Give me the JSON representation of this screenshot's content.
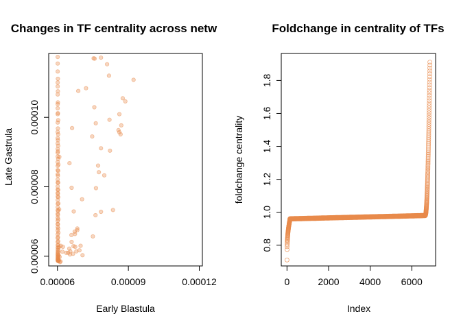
{
  "chart_data": [
    {
      "type": "scatter",
      "title": "Changes in TF centrality across netw",
      "xlabel": "Early Blastula",
      "ylabel": "Late Gastrula",
      "xlim": [
        5.63e-05,
        0.0001213
      ],
      "ylim": [
        5.72e-05,
        0.0001184
      ],
      "x_ticks": [
        6e-05,
        9e-05,
        0.00012
      ],
      "x_tick_labels": [
        "0.00006",
        "0.00009",
        "0.00012"
      ],
      "y_ticks": [
        6e-05,
        8e-05,
        0.0001
      ],
      "y_tick_labels": [
        "0.00006",
        "0.00008",
        "0.00010"
      ],
      "marker": "filled circle, semi-transparent",
      "color": "#E8894A",
      "points": [
        [
          6.01e-05,
          0.0001174
        ],
        [
          6.01e-05,
          0.0001155
        ],
        [
          6.01e-05,
          0.0001132
        ],
        [
          6.02e-05,
          0.0001111
        ],
        [
          6.01e-05,
          0.0001089
        ],
        [
          6.01e-05,
          0.0001066
        ],
        [
          6.02e-05,
          0.0001043
        ],
        [
          6.01e-05,
          0.0001026
        ],
        [
          6.01e-05,
          0.0001009
        ],
        [
          6.01e-05,
          9.85e-05
        ],
        [
          6.01e-05,
          9.58e-05
        ],
        [
          6.01e-05,
          9.4e-05
        ],
        [
          6.01e-05,
          9.25e-05
        ],
        [
          6.01e-05,
          9.09e-05
        ],
        [
          6.01e-05,
          8.98e-05
        ],
        [
          6.01e-05,
          8.87e-05
        ],
        [
          6.01e-05,
          8.71e-05
        ],
        [
          6.01e-05,
          8.6e-05
        ],
        [
          6.01e-05,
          8.48e-05
        ],
        [
          6.01e-05,
          8.36e-05
        ],
        [
          6.01e-05,
          8.21e-05
        ],
        [
          6.01e-05,
          8.12e-05
        ],
        [
          6.01e-05,
          8.01e-05
        ],
        [
          6.01e-05,
          7.92e-05
        ],
        [
          6.01e-05,
          7.82e-05
        ],
        [
          6.01e-05,
          7.72e-05
        ],
        [
          6.01e-05,
          7.62e-05
        ],
        [
          6.01e-05,
          7.51e-05
        ],
        [
          6.01e-05,
          7.41e-05
        ],
        [
          6.01e-05,
          7.32e-05
        ],
        [
          6.01e-05,
          7.22e-05
        ],
        [
          6.01e-05,
          7.11e-05
        ],
        [
          6.01e-05,
          7.02e-05
        ],
        [
          6.01e-05,
          6.93e-05
        ],
        [
          6.01e-05,
          6.84e-05
        ],
        [
          6.01e-05,
          6.74e-05
        ],
        [
          6.01e-05,
          6.63e-05
        ],
        [
          6.01e-05,
          6.52e-05
        ],
        [
          6.01e-05,
          6.41e-05
        ],
        [
          6.01e-05,
          6.32e-05
        ],
        [
          6.01e-05,
          6.25e-05
        ],
        [
          6.01e-05,
          6.18e-05
        ],
        [
          6.01e-05,
          6.12e-05
        ],
        [
          6.01e-05,
          6.07e-05
        ],
        [
          6.01e-05,
          6.03e-05
        ],
        [
          6.01e-05,
          5.99e-05
        ],
        [
          6.01e-05,
          5.96e-05
        ],
        [
          6.01e-05,
          5.93e-05
        ],
        [
          6.01e-05,
          5.9e-05
        ],
        [
          6.01e-05,
          5.88e-05
        ],
        [
          6.02e-05,
          5.87e-05
        ],
        [
          6.03e-05,
          5.86e-05
        ],
        [
          6.04e-05,
          5.86e-05
        ],
        [
          6.05e-05,
          5.87e-05
        ],
        [
          6.06e-05,
          5.88e-05
        ],
        [
          6.03e-05,
          5.92e-05
        ],
        [
          6.04e-05,
          5.96e-05
        ],
        [
          6.03e-05,
          6.01e-05
        ],
        [
          6.02e-05,
          6.06e-05
        ],
        [
          6.03e-05,
          6.11e-05
        ],
        [
          6.04e-05,
          6.17e-05
        ],
        [
          6.03e-05,
          6.24e-05
        ],
        [
          6.04e-05,
          6.32e-05
        ],
        [
          6.03e-05,
          6.43e-05
        ],
        [
          6.02e-05,
          6.55e-05
        ],
        [
          6.04e-05,
          6.68e-05
        ],
        [
          6.03e-05,
          6.8e-05
        ],
        [
          6.02e-05,
          6.92e-05
        ],
        [
          6.03e-05,
          7.06e-05
        ],
        [
          6.02e-05,
          7.19e-05
        ],
        [
          6.03e-05,
          7.31e-05
        ],
        [
          6.04e-05,
          7.52e-05
        ],
        [
          6.03e-05,
          7.7e-05
        ],
        [
          6.02e-05,
          7.8e-05
        ],
        [
          6.03e-05,
          7.91e-05
        ],
        [
          6.03e-05,
          8.12e-05
        ],
        [
          6.02e-05,
          8.32e-05
        ],
        [
          6.03e-05,
          8.46e-05
        ],
        [
          6.04e-05,
          8.64e-05
        ],
        [
          6.03e-05,
          8.8e-05
        ],
        [
          6.02e-05,
          9.02e-05
        ],
        [
          6.03e-05,
          9.18e-05
        ],
        [
          6.02e-05,
          9.34e-05
        ],
        [
          6.03e-05,
          9.51e-05
        ],
        [
          6.02e-05,
          9.68e-05
        ],
        [
          6.03e-05,
          9.92e-05
        ],
        [
          6.02e-05,
          0.0001012
        ],
        [
          6.01e-05,
          0.0001038
        ],
        [
          6.02e-05,
          0.0001075
        ],
        [
          6.01e-05,
          0.00011
        ],
        [
          6.05e-05,
          6.03e-05
        ],
        [
          6.06e-05,
          6.26e-05
        ],
        [
          6.07e-05,
          7.35e-05
        ],
        [
          6.08e-05,
          8.86e-05
        ],
        [
          6.09e-05,
          5.98e-05
        ],
        [
          6.11e-05,
          5.83e-05
        ],
        [
          6.13e-05,
          5.85e-05
        ],
        [
          6.14e-05,
          6.3e-05
        ],
        [
          6.21e-05,
          6.13e-05
        ],
        [
          6.23e-05,
          6.27e-05
        ],
        [
          6.37e-05,
          6.1e-05
        ],
        [
          6.45e-05,
          6.1e-05
        ],
        [
          6.5e-05,
          6.22e-05
        ],
        [
          6.54e-05,
          6.14e-05
        ],
        [
          6.6e-05,
          6.41e-05
        ],
        [
          6.59e-05,
          6.61e-05
        ],
        [
          6.68e-05,
          6.29e-05
        ],
        [
          6.73e-05,
          6.71e-05
        ],
        [
          6.75e-05,
          6.27e-05
        ],
        [
          6.8e-05,
          6.14e-05
        ],
        [
          6.84e-05,
          6.8e-05
        ],
        [
          6.84e-05,
          6.75e-05
        ],
        [
          6.66e-05,
          6.07e-05
        ],
        [
          6.53e-05,
          6.05e-05
        ],
        [
          6.51e-05,
          8.68e-05
        ],
        [
          6.62e-05,
          9.69e-05
        ],
        [
          6.6e-05,
          7.97e-05
        ],
        [
          6.69e-05,
          7.29e-05
        ],
        [
          6.74e-05,
          6.64e-05
        ],
        [
          6.88e-05,
          0.0001076
        ],
        [
          6.93e-05,
          6.17e-05
        ],
        [
          6.98e-05,
          6.3e-05
        ],
        [
          7.04e-05,
          7.64e-05
        ],
        [
          7.06e-05,
          6.03e-05
        ],
        [
          7.21e-05,
          0.0001084
        ],
        [
          7.47e-05,
          9.45e-05
        ],
        [
          7.53e-05,
          0.000117
        ],
        [
          7.57e-05,
          0.0001169
        ],
        [
          7.5e-05,
          6.57e-05
        ],
        [
          7.56e-05,
          0.0001029
        ],
        [
          7.62e-05,
          9.83e-05
        ],
        [
          7.61e-05,
          7.18e-05
        ],
        [
          7.72e-05,
          8.61e-05
        ],
        [
          7.75e-05,
          8.42e-05
        ],
        [
          7.63e-05,
          7.96e-05
        ],
        [
          7.84e-05,
          7.28e-05
        ],
        [
          7.84e-05,
          9.11e-05
        ],
        [
          7.98e-05,
          8.33e-05
        ],
        [
          7.84e-05,
          0.0001172
        ],
        [
          8.1e-05,
          0.0001153
        ],
        [
          8.18e-05,
          0.000112
        ],
        [
          8.2e-05,
          9.93e-05
        ],
        [
          8.35e-05,
          7.33e-05
        ],
        [
          8.22e-05,
          9.04e-05
        ],
        [
          8.58e-05,
          9.63e-05
        ],
        [
          8.67e-05,
          9.51e-05
        ],
        [
          8.62e-05,
          9.57e-05
        ],
        [
          8.76e-05,
          0.0001055
        ],
        [
          8.62e-05,
          0.0001009
        ],
        [
          8.7e-05,
          9.77e-05
        ],
        [
          8.87e-05,
          0.0001046
        ],
        [
          9.22e-05,
          0.0001108
        ]
      ]
    },
    {
      "type": "scatter",
      "title": "Foldchange in centrality of TFs",
      "xlabel": "Index",
      "ylabel": "foldchange centrality",
      "xlim": [
        -275,
        7147
      ],
      "ylim": [
        0.674,
        1.964
      ],
      "x_ticks": [
        0,
        2000,
        4000,
        6000
      ],
      "x_tick_labels": [
        "0",
        "2000",
        "4000",
        "6000"
      ],
      "y_ticks": [
        0.8,
        1.0,
        1.2,
        1.4,
        1.6,
        1.8
      ],
      "y_tick_labels": [
        "0.8",
        "1.0",
        "1.2",
        "1.4",
        "1.6",
        "1.8"
      ],
      "marker": "open circle",
      "color": "#E8894A",
      "n_points": 6872,
      "y_min": 0.71,
      "plateau_start": 0.96,
      "plateau_end": 0.98,
      "y_max": 1.92
    }
  ]
}
